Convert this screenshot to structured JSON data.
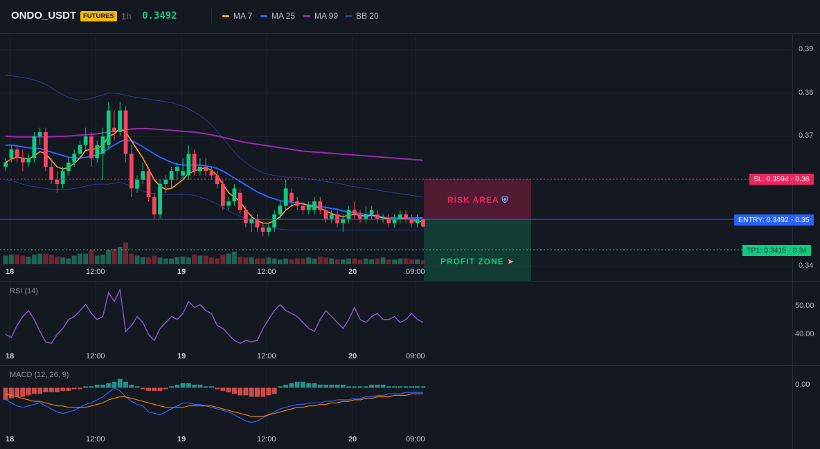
{
  "header": {
    "symbol": "ONDO_USDT",
    "badge": "FUTURES",
    "timeframe": "1h",
    "last_price": "0.3492",
    "indicators": [
      {
        "label": "MA 7",
        "color": "#f7a21b"
      },
      {
        "label": "MA 25",
        "color": "#2962ff"
      },
      {
        "label": "MA 99",
        "color": "#9c27b0"
      },
      {
        "label": "BB 20",
        "color": "#2b3a8a"
      }
    ]
  },
  "price_axis": [
    "0.39",
    "0.38",
    "0.37",
    "0.36",
    "0.35",
    "0.34"
  ],
  "time_axis": [
    "18",
    "12:00",
    "19",
    "12:00",
    "20",
    "09:00"
  ],
  "levels": {
    "sl": {
      "label": "SL: 0.3594",
      "value": "0.36",
      "color": "#f0245e"
    },
    "entry": {
      "label": "ENTRY: 0.3492",
      "value": "0.35",
      "color": "#2962ff"
    },
    "tp1": {
      "label": "TP1: 0.3415",
      "value": "0.34",
      "color": "#0ecb81"
    }
  },
  "zones": {
    "risk": {
      "label": "RISK AREA",
      "icon": "shield-icon"
    },
    "profit": {
      "label": "PROFIT ZONE",
      "icon": "rocket-icon"
    }
  },
  "rsi": {
    "title": "RSI (14)",
    "axis": [
      "50.00",
      "40.00"
    ]
  },
  "macd": {
    "title": "MACD (12, 26, 9)",
    "axis": [
      "0.00"
    ]
  },
  "chart_data": {
    "type": "candlestick",
    "symbol": "ONDO_USDT",
    "timeframe": "1h",
    "ylim": [
      0.3405,
      0.3935
    ],
    "up_color": "#0ecb81",
    "down_color": "#f6465d",
    "candles": [
      [
        0.363,
        0.365,
        0.362,
        0.364
      ],
      [
        0.365,
        0.368,
        0.364,
        0.367
      ],
      [
        0.367,
        0.368,
        0.364,
        0.365
      ],
      [
        0.365,
        0.367,
        0.362,
        0.364
      ],
      [
        0.364,
        0.366,
        0.363,
        0.365
      ],
      [
        0.365,
        0.371,
        0.364,
        0.37
      ],
      [
        0.37,
        0.372,
        0.368,
        0.371
      ],
      [
        0.371,
        0.372,
        0.362,
        0.363
      ],
      [
        0.363,
        0.365,
        0.359,
        0.36
      ],
      [
        0.36,
        0.362,
        0.357,
        0.359
      ],
      [
        0.359,
        0.363,
        0.358,
        0.362
      ],
      [
        0.362,
        0.365,
        0.361,
        0.364
      ],
      [
        0.364,
        0.367,
        0.363,
        0.366
      ],
      [
        0.366,
        0.369,
        0.365,
        0.368
      ],
      [
        0.368,
        0.372,
        0.367,
        0.37
      ],
      [
        0.37,
        0.371,
        0.363,
        0.365
      ],
      [
        0.365,
        0.369,
        0.364,
        0.368
      ],
      [
        0.366,
        0.372,
        0.36,
        0.37
      ],
      [
        0.368,
        0.378,
        0.367,
        0.376
      ],
      [
        0.372,
        0.376,
        0.369,
        0.371
      ],
      [
        0.371,
        0.378,
        0.37,
        0.376
      ],
      [
        0.376,
        0.377,
        0.364,
        0.366
      ],
      [
        0.366,
        0.368,
        0.356,
        0.358
      ],
      [
        0.358,
        0.361,
        0.357,
        0.36
      ],
      [
        0.36,
        0.364,
        0.359,
        0.362
      ],
      [
        0.362,
        0.363,
        0.355,
        0.356
      ],
      [
        0.356,
        0.357,
        0.351,
        0.352
      ],
      [
        0.352,
        0.36,
        0.351,
        0.359
      ],
      [
        0.359,
        0.361,
        0.357,
        0.36
      ],
      [
        0.36,
        0.363,
        0.358,
        0.362
      ],
      [
        0.362,
        0.364,
        0.36,
        0.363
      ],
      [
        0.361,
        0.365,
        0.36,
        0.362
      ],
      [
        0.361,
        0.368,
        0.36,
        0.366
      ],
      [
        0.366,
        0.367,
        0.361,
        0.362
      ],
      [
        0.362,
        0.365,
        0.361,
        0.363
      ],
      [
        0.363,
        0.365,
        0.361,
        0.362
      ],
      [
        0.362,
        0.363,
        0.36,
        0.361
      ],
      [
        0.361,
        0.362,
        0.358,
        0.359
      ],
      [
        0.359,
        0.36,
        0.353,
        0.354
      ],
      [
        0.354,
        0.356,
        0.353,
        0.355
      ],
      [
        0.355,
        0.359,
        0.354,
        0.358
      ],
      [
        0.357,
        0.358,
        0.352,
        0.353
      ],
      [
        0.353,
        0.354,
        0.349,
        0.35
      ],
      [
        0.35,
        0.352,
        0.348,
        0.351
      ],
      [
        0.351,
        0.352,
        0.348,
        0.349
      ],
      [
        0.349,
        0.35,
        0.347,
        0.348
      ],
      [
        0.348,
        0.35,
        0.347,
        0.349
      ],
      [
        0.349,
        0.353,
        0.348,
        0.352
      ],
      [
        0.352,
        0.355,
        0.351,
        0.354
      ],
      [
        0.354,
        0.36,
        0.353,
        0.358
      ],
      [
        0.357,
        0.358,
        0.354,
        0.355
      ],
      [
        0.355,
        0.356,
        0.353,
        0.354
      ],
      [
        0.354,
        0.355,
        0.352,
        0.353
      ],
      [
        0.353,
        0.355,
        0.352,
        0.354
      ],
      [
        0.353,
        0.356,
        0.352,
        0.355
      ],
      [
        0.355,
        0.356,
        0.352,
        0.353
      ],
      [
        0.353,
        0.354,
        0.35,
        0.351
      ],
      [
        0.351,
        0.353,
        0.35,
        0.352
      ],
      [
        0.352,
        0.353,
        0.349,
        0.35
      ],
      [
        0.35,
        0.352,
        0.348,
        0.351
      ],
      [
        0.351,
        0.354,
        0.35,
        0.353
      ],
      [
        0.353,
        0.355,
        0.351,
        0.352
      ],
      [
        0.352,
        0.353,
        0.35,
        0.351
      ],
      [
        0.351,
        0.354,
        0.35,
        0.352
      ],
      [
        0.352,
        0.354,
        0.351,
        0.353
      ],
      [
        0.352,
        0.353,
        0.35,
        0.351
      ],
      [
        0.351,
        0.352,
        0.35,
        0.351
      ],
      [
        0.351,
        0.352,
        0.349,
        0.35
      ],
      [
        0.35,
        0.352,
        0.349,
        0.351
      ],
      [
        0.351,
        0.353,
        0.35,
        0.352
      ],
      [
        0.352,
        0.353,
        0.35,
        0.351
      ],
      [
        0.351,
        0.352,
        0.349,
        0.35
      ],
      [
        0.35,
        0.352,
        0.349,
        0.351
      ],
      [
        0.351,
        0.351,
        0.349,
        0.3492
      ]
    ],
    "ma7": [
      0.364,
      0.3648,
      0.3652,
      0.365,
      0.3648,
      0.3655,
      0.3665,
      0.366,
      0.3645,
      0.363,
      0.3625,
      0.3628,
      0.3638,
      0.365,
      0.3668,
      0.367,
      0.3672,
      0.368,
      0.37,
      0.3706,
      0.3718,
      0.371,
      0.369,
      0.367,
      0.365,
      0.3625,
      0.36,
      0.3585,
      0.3578,
      0.358,
      0.359,
      0.36,
      0.3615,
      0.362,
      0.3625,
      0.3628,
      0.3622,
      0.361,
      0.359,
      0.357,
      0.356,
      0.355,
      0.353,
      0.3515,
      0.3505,
      0.35,
      0.35,
      0.3505,
      0.3515,
      0.353,
      0.354,
      0.3545,
      0.3545,
      0.354,
      0.3538,
      0.3535,
      0.3528,
      0.3522,
      0.3518,
      0.3515,
      0.3518,
      0.352,
      0.3518,
      0.3516,
      0.3518,
      0.3516,
      0.3512,
      0.351,
      0.3508,
      0.351,
      0.351,
      0.3508,
      0.3506,
      0.3502
    ],
    "ma25": [
      0.368,
      0.368,
      0.3678,
      0.3676,
      0.3674,
      0.3672,
      0.3672,
      0.3668,
      0.3664,
      0.366,
      0.3656,
      0.3652,
      0.365,
      0.365,
      0.3652,
      0.3654,
      0.3658,
      0.3664,
      0.3672,
      0.368,
      0.3688,
      0.3692,
      0.369,
      0.3684,
      0.3676,
      0.3668,
      0.366,
      0.3652,
      0.3646,
      0.364,
      0.3636,
      0.3634,
      0.3634,
      0.3634,
      0.3634,
      0.3632,
      0.363,
      0.3626,
      0.362,
      0.3612,
      0.3604,
      0.3596,
      0.3588,
      0.358,
      0.3572,
      0.3566,
      0.356,
      0.3556,
      0.3552,
      0.355,
      0.3548,
      0.3546,
      0.3544,
      0.3542,
      0.354,
      0.3538,
      0.3536,
      0.3534,
      0.3532,
      0.3528,
      0.3526,
      0.3524,
      0.3522,
      0.352,
      0.3518,
      0.3516,
      0.3514,
      0.3512,
      0.3512,
      0.3512,
      0.3512,
      0.3512,
      0.3512,
      0.3512
    ],
    "ma99": [
      0.37,
      0.37,
      0.3699,
      0.3699,
      0.3699,
      0.3699,
      0.3699,
      0.3699,
      0.3699,
      0.37,
      0.37,
      0.3701,
      0.3702,
      0.3703,
      0.3704,
      0.3705,
      0.3706,
      0.3708,
      0.371,
      0.3712,
      0.3714,
      0.3716,
      0.3717,
      0.3718,
      0.3718,
      0.3718,
      0.3717,
      0.3716,
      0.3715,
      0.3714,
      0.3713,
      0.3712,
      0.3711,
      0.371,
      0.3708,
      0.3706,
      0.3704,
      0.3701,
      0.3698,
      0.3695,
      0.3692,
      0.3689,
      0.3686,
      0.3684,
      0.3682,
      0.368,
      0.3678,
      0.3676,
      0.3674,
      0.3672,
      0.367,
      0.3668,
      0.3666,
      0.3665,
      0.3664,
      0.3663,
      0.3662,
      0.3661,
      0.366,
      0.3659,
      0.3658,
      0.3657,
      0.3656,
      0.3655,
      0.3654,
      0.3653,
      0.3652,
      0.3651,
      0.365,
      0.3649,
      0.3648,
      0.3647,
      0.3646,
      0.3645
    ],
    "bb_upper": [
      0.384,
      0.384,
      0.3838,
      0.3836,
      0.3834,
      0.383,
      0.3826,
      0.382,
      0.3812,
      0.3804,
      0.3796,
      0.379,
      0.3786,
      0.3784,
      0.3785,
      0.3788,
      0.3792,
      0.3796,
      0.38,
      0.38,
      0.3798,
      0.3795,
      0.3792,
      0.379,
      0.3788,
      0.3786,
      0.3784,
      0.3782,
      0.378,
      0.3778,
      0.3774,
      0.377,
      0.3764,
      0.3756,
      0.3748,
      0.3738,
      0.3726,
      0.3712,
      0.3696,
      0.368,
      0.3664,
      0.365,
      0.364,
      0.363,
      0.3622,
      0.3616,
      0.3612,
      0.361,
      0.3608,
      0.3606,
      0.3606,
      0.3606,
      0.3604,
      0.3602,
      0.36,
      0.3598,
      0.3596,
      0.3594,
      0.3592,
      0.359,
      0.3586,
      0.3584,
      0.3582,
      0.358,
      0.3578,
      0.3576,
      0.3574,
      0.3572,
      0.357,
      0.3568,
      0.3566,
      0.3564,
      0.3562,
      0.356
    ],
    "bb_lower": [
      0.36,
      0.3598,
      0.3594,
      0.359,
      0.3586,
      0.3584,
      0.3582,
      0.358,
      0.3578,
      0.3578,
      0.3578,
      0.3578,
      0.358,
      0.3582,
      0.3585,
      0.3588,
      0.359,
      0.359,
      0.359,
      0.3592,
      0.3594,
      0.359,
      0.3584,
      0.3578,
      0.3574,
      0.357,
      0.3568,
      0.3566,
      0.3566,
      0.3566,
      0.3566,
      0.3566,
      0.3566,
      0.3564,
      0.356,
      0.3556,
      0.355,
      0.3544,
      0.3536,
      0.3528,
      0.3522,
      0.3516,
      0.351,
      0.3504,
      0.3498,
      0.3494,
      0.349,
      0.3488,
      0.3486,
      0.3485,
      0.3484,
      0.3484,
      0.3484,
      0.3484,
      0.3484,
      0.3484,
      0.3484,
      0.3484,
      0.3484,
      0.3484,
      0.3484,
      0.3484,
      0.3484,
      0.3484,
      0.3484,
      0.3484,
      0.3484,
      0.3484,
      0.3484,
      0.3484,
      0.3484,
      0.3484,
      0.3484,
      0.3484
    ],
    "volume_scale": [
      0,
      1
    ],
    "volume": [
      0.18,
      0.2,
      0.2,
      0.18,
      0.16,
      0.2,
      0.22,
      0.22,
      0.2,
      0.16,
      0.14,
      0.12,
      0.18,
      0.22,
      0.22,
      0.3,
      0.18,
      0.2,
      0.3,
      0.32,
      0.36,
      0.45,
      0.22,
      0.18,
      0.15,
      0.14,
      0.18,
      0.14,
      0.12,
      0.12,
      0.15,
      0.16,
      0.14,
      0.2,
      0.18,
      0.18,
      0.14,
      0.12,
      0.2,
      0.22,
      0.26,
      0.16,
      0.14,
      0.14,
      0.12,
      0.12,
      0.14,
      0.12,
      0.1,
      0.12,
      0.1,
      0.12,
      0.12,
      0.14,
      0.12,
      0.16,
      0.14,
      0.12,
      0.1,
      0.1,
      0.12,
      0.12,
      0.1,
      0.12,
      0.1,
      0.12,
      0.14,
      0.1,
      0.1,
      0.12,
      0.12,
      0.1,
      0.1,
      0.08
    ],
    "rsi": {
      "ylim": [
        36,
        58
      ],
      "values": [
        41,
        40,
        44,
        47,
        49,
        46,
        42,
        38.5,
        38,
        41,
        43,
        46,
        47,
        49,
        51,
        48,
        46,
        47,
        55,
        52,
        56,
        42,
        44,
        47,
        45,
        41,
        39,
        43,
        45,
        47,
        46,
        48,
        52,
        50,
        51,
        49,
        48,
        44,
        43,
        41,
        39,
        38,
        39,
        38.5,
        39,
        43,
        46,
        49,
        51,
        49,
        48,
        47,
        45,
        43,
        42,
        46,
        49,
        47,
        45,
        43,
        46,
        50,
        46,
        45,
        47,
        48,
        46,
        46,
        47,
        45,
        46,
        48,
        46,
        45
      ],
      "color": "#7e57c2"
    },
    "macd": {
      "ylim": [
        -0.0025,
        0.0014
      ],
      "hist": [
        -0.0008,
        -0.0007,
        -0.0006,
        -0.0006,
        -0.0005,
        -0.0004,
        -0.0004,
        -0.0003,
        -0.0003,
        -0.0003,
        -0.0002,
        -0.0002,
        -0.0001,
        -0.0001,
        0.0001,
        0.0001,
        0.0002,
        0.0002,
        0.0003,
        0.0004,
        0.0006,
        0.0004,
        0.0002,
        0.0001,
        -0.0001,
        -0.0002,
        -0.0002,
        -0.0002,
        -0.0001,
        0.0001,
        0.0002,
        0.0003,
        0.0003,
        0.0002,
        0.0002,
        0.0001,
        0.0001,
        -0.0001,
        -0.0002,
        -0.0003,
        -0.0004,
        -0.0005,
        -0.0005,
        -0.0006,
        -0.0006,
        -0.0006,
        -0.0005,
        -0.0004,
        0.0001,
        0.0002,
        0.0003,
        0.0004,
        0.0004,
        0.0003,
        0.0003,
        0.0002,
        0.0002,
        0.0002,
        0.0002,
        0.0002,
        0.0001,
        0.0001,
        0.0001,
        0.0001,
        0.0002,
        0.0002,
        0.0002,
        0.0001,
        0.0001,
        0.0001,
        0.0001,
        0.0001,
        0.0001,
        0.0001
      ],
      "macd_line": [
        -0.0008,
        -0.001,
        -0.0012,
        -0.0013,
        -0.0012,
        -0.0011,
        -0.001,
        -0.0012,
        -0.0014,
        -0.0016,
        -0.0017,
        -0.0016,
        -0.0015,
        -0.0013,
        -0.0011,
        -0.001,
        -0.0008,
        -0.0006,
        -0.0003,
        0.0,
        -0.0002,
        -0.0006,
        -0.0009,
        -0.0011,
        -0.0012,
        -0.0016,
        -0.0017,
        -0.0018,
        -0.0016,
        -0.0014,
        -0.0012,
        -0.001,
        -0.001,
        -0.0011,
        -0.0011,
        -0.0012,
        -0.0013,
        -0.0014,
        -0.0015,
        -0.0016,
        -0.0018,
        -0.002,
        -0.0022,
        -0.0023,
        -0.0022,
        -0.002,
        -0.0018,
        -0.0016,
        -0.0014,
        -0.0013,
        -0.0012,
        -0.0011,
        -0.0011,
        -0.001,
        -0.001,
        -0.001,
        -0.0009,
        -0.0009,
        -0.0008,
        -0.0008,
        -0.0008,
        -0.0007,
        -0.0007,
        -0.0006,
        -0.0006,
        -0.0005,
        -0.0005,
        -0.0004,
        -0.0004,
        -0.0004,
        -0.0003,
        -0.0003,
        -0.0003,
        -0.0003
      ],
      "signal_line": [
        -0.0004,
        -0.0005,
        -0.0006,
        -0.0007,
        -0.0008,
        -0.0009,
        -0.0009,
        -0.001,
        -0.0011,
        -0.0012,
        -0.0012,
        -0.0013,
        -0.0013,
        -0.0013,
        -0.0013,
        -0.0012,
        -0.0011,
        -0.001,
        -0.0008,
        -0.0007,
        -0.0006,
        -0.0006,
        -0.0007,
        -0.0008,
        -0.0009,
        -0.001,
        -0.0011,
        -0.0012,
        -0.0013,
        -0.0013,
        -0.0013,
        -0.0013,
        -0.0012,
        -0.0012,
        -0.0012,
        -0.0012,
        -0.0012,
        -0.0013,
        -0.0014,
        -0.0015,
        -0.0016,
        -0.0017,
        -0.0018,
        -0.0019,
        -0.0019,
        -0.0019,
        -0.0018,
        -0.0017,
        -0.0016,
        -0.0015,
        -0.0014,
        -0.0013,
        -0.0013,
        -0.0012,
        -0.0012,
        -0.0011,
        -0.0011,
        -0.001,
        -0.001,
        -0.0009,
        -0.0009,
        -0.0008,
        -0.0008,
        -0.0007,
        -0.0007,
        -0.0006,
        -0.0006,
        -0.0006,
        -0.0005,
        -0.0005,
        -0.0005,
        -0.0004,
        -0.0004,
        -0.0004
      ],
      "macd_color": "#2962ff",
      "signal_color": "#f57c00",
      "hist_pos_color": "#26a69a",
      "hist_neg_color": "#ef5350"
    }
  }
}
